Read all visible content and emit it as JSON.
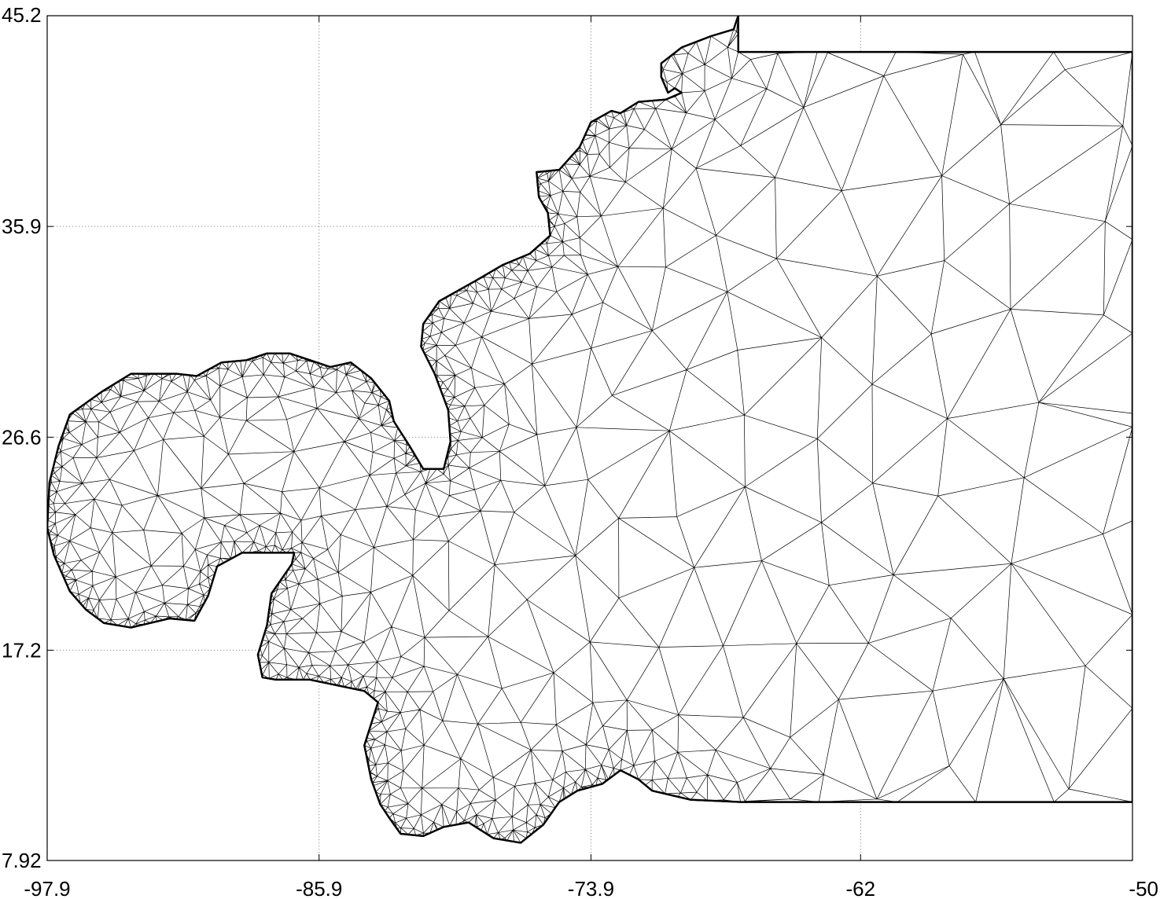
{
  "chart_data": {
    "type": "map",
    "title": "",
    "xlabel": "",
    "ylabel": "",
    "xlim": [
      -97.9,
      -50
    ],
    "ylim": [
      7.92,
      45.2
    ],
    "grid": true,
    "x_ticks": [
      "-97.9",
      "-85.9",
      "-73.9",
      "-62",
      "-50"
    ],
    "y_ticks": [
      "45.2",
      "35.9",
      "26.6",
      "17.2",
      "7.92"
    ],
    "x_tick_values": [
      -97.9,
      -85.9,
      -73.9,
      -62,
      -50
    ],
    "y_tick_values": [
      45.2,
      35.9,
      26.6,
      17.2,
      7.92
    ],
    "description_layer": "triangular finite element mesh",
    "open_boundary_lon": -50,
    "domain_outline": [
      [
        -67.4,
        45.2
      ],
      [
        -67.4,
        43.6
      ],
      [
        -50,
        43.6
      ],
      [
        -50,
        10.5
      ],
      [
        -67.3,
        10.5
      ],
      [
        -69.5,
        10.6
      ],
      [
        -71.2,
        11.0
      ],
      [
        -71.8,
        11.5
      ],
      [
        -72.6,
        11.9
      ],
      [
        -73.4,
        11.3
      ],
      [
        -74.5,
        11.0
      ],
      [
        -75.3,
        10.5
      ],
      [
        -76.0,
        9.5
      ],
      [
        -77.0,
        8.7
      ],
      [
        -78.2,
        8.9
      ],
      [
        -79.3,
        9.6
      ],
      [
        -80.4,
        9.4
      ],
      [
        -81.3,
        9.0
      ],
      [
        -82.3,
        9.1
      ],
      [
        -82.8,
        9.8
      ],
      [
        -83.2,
        10.4
      ],
      [
        -83.6,
        11.5
      ],
      [
        -83.9,
        13.0
      ],
      [
        -83.3,
        14.9
      ],
      [
        -83.9,
        15.4
      ],
      [
        -86.3,
        15.9
      ],
      [
        -87.8,
        15.9
      ],
      [
        -88.4,
        16.0
      ],
      [
        -88.6,
        17.0
      ],
      [
        -88.2,
        18.3
      ],
      [
        -88.0,
        19.7
      ],
      [
        -87.1,
        21.0
      ],
      [
        -87.0,
        21.5
      ],
      [
        -89.3,
        21.5
      ],
      [
        -90.4,
        20.9
      ],
      [
        -90.8,
        19.6
      ],
      [
        -91.4,
        18.5
      ],
      [
        -92.5,
        18.6
      ],
      [
        -94.2,
        18.2
      ],
      [
        -95.4,
        18.4
      ],
      [
        -96.2,
        19.0
      ],
      [
        -96.9,
        19.8
      ],
      [
        -97.6,
        21.4
      ],
      [
        -97.9,
        22.6
      ],
      [
        -97.8,
        24.6
      ],
      [
        -97.4,
        26.2
      ],
      [
        -96.9,
        27.6
      ],
      [
        -95.5,
        28.6
      ],
      [
        -94.2,
        29.4
      ],
      [
        -92.2,
        29.4
      ],
      [
        -91.3,
        29.3
      ],
      [
        -90.2,
        29.9
      ],
      [
        -89.1,
        30.0
      ],
      [
        -88.2,
        30.3
      ],
      [
        -87.2,
        30.3
      ],
      [
        -85.4,
        29.7
      ],
      [
        -84.5,
        29.9
      ],
      [
        -83.6,
        29.2
      ],
      [
        -82.8,
        28.2
      ],
      [
        -82.6,
        27.3
      ],
      [
        -81.9,
        26.2
      ],
      [
        -81.3,
        25.2
      ],
      [
        -80.4,
        25.2
      ],
      [
        -80.1,
        26.4
      ],
      [
        -80.2,
        27.8
      ],
      [
        -80.8,
        29.4
      ],
      [
        -81.4,
        30.6
      ],
      [
        -81.3,
        31.6
      ],
      [
        -80.6,
        32.6
      ],
      [
        -79.0,
        33.5
      ],
      [
        -77.8,
        34.2
      ],
      [
        -76.6,
        34.7
      ],
      [
        -75.7,
        35.5
      ],
      [
        -75.8,
        36.5
      ],
      [
        -76.2,
        37.2
      ],
      [
        -76.3,
        38.3
      ],
      [
        -75.3,
        38.4
      ],
      [
        -74.4,
        39.4
      ],
      [
        -73.9,
        40.5
      ],
      [
        -73.0,
        41.0
      ],
      [
        -72.6,
        40.9
      ],
      [
        -71.8,
        41.4
      ],
      [
        -70.6,
        41.5
      ],
      [
        -69.9,
        41.8
      ],
      [
        -70.2,
        42.0
      ],
      [
        -70.5,
        41.8
      ],
      [
        -70.8,
        42.5
      ],
      [
        -70.8,
        43.1
      ],
      [
        -69.9,
        43.8
      ],
      [
        -68.6,
        44.3
      ],
      [
        -67.6,
        44.6
      ],
      [
        -67.4,
        45.2
      ]
    ],
    "refinement_centers": [
      [
        -90.0,
        25.0
      ],
      [
        -85.5,
        22.0
      ],
      [
        -82.0,
        18.0
      ],
      [
        -81.5,
        30.0
      ],
      [
        -77.0,
        37.5
      ],
      [
        -72.5,
        42.5
      ],
      [
        -80.0,
        12.5
      ],
      [
        -71.0,
        14.0
      ]
    ]
  }
}
